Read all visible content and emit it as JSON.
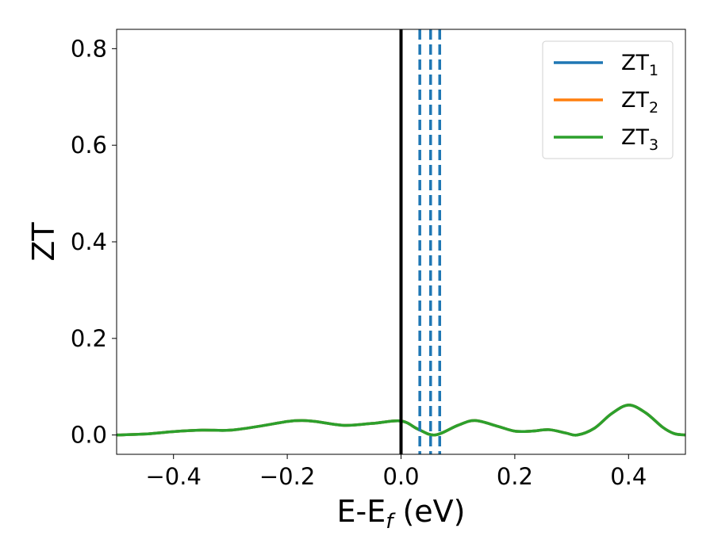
{
  "chart_data": {
    "type": "line",
    "xlabel": "E-E",
    "xlabel_sub": "f",
    "xlabel_unit": " (eV)",
    "ylabel": "ZT",
    "xlim": [
      -0.5,
      0.5
    ],
    "ylim": [
      -0.04,
      0.84
    ],
    "xticks": [
      -0.4,
      -0.2,
      0.0,
      0.2,
      0.4
    ],
    "xtick_labels": [
      "−0.4",
      "−0.2",
      "0.0",
      "0.2",
      "0.4"
    ],
    "yticks": [
      0.0,
      0.2,
      0.4,
      0.6,
      0.8
    ],
    "ytick_labels": [
      "0.0",
      "0.2",
      "0.4",
      "0.6",
      "0.8"
    ],
    "grid": false,
    "legend_position": "top-right",
    "series": [
      {
        "name": "ZT",
        "name_sub": "1",
        "color": "#1f77b4",
        "x": [
          -0.5,
          -0.45,
          -0.4,
          -0.35,
          -0.3,
          -0.25,
          -0.2,
          -0.175,
          -0.15,
          -0.1,
          -0.05,
          0.0,
          0.03,
          0.06,
          0.1,
          0.13,
          0.17,
          0.2,
          0.23,
          0.26,
          0.29,
          0.31,
          0.34,
          0.37,
          0.4,
          0.43,
          0.46,
          0.48,
          0.5
        ],
        "y": [
          0.0,
          0.002,
          0.007,
          0.01,
          0.01,
          0.018,
          0.028,
          0.03,
          0.028,
          0.02,
          0.024,
          0.029,
          0.012,
          0.0,
          0.02,
          0.03,
          0.018,
          0.008,
          0.008,
          0.011,
          0.004,
          0.0,
          0.014,
          0.044,
          0.062,
          0.046,
          0.016,
          0.003,
          0.0
        ]
      },
      {
        "name": "ZT",
        "name_sub": "2",
        "color": "#ff7f0e",
        "x": [
          -0.5,
          -0.45,
          -0.4,
          -0.35,
          -0.3,
          -0.25,
          -0.2,
          -0.175,
          -0.15,
          -0.1,
          -0.05,
          0.0,
          0.03,
          0.06,
          0.1,
          0.13,
          0.17,
          0.2,
          0.23,
          0.26,
          0.29,
          0.31,
          0.34,
          0.37,
          0.4,
          0.43,
          0.46,
          0.48,
          0.5
        ],
        "y": [
          0.0,
          0.002,
          0.007,
          0.01,
          0.01,
          0.018,
          0.028,
          0.03,
          0.028,
          0.02,
          0.024,
          0.029,
          0.012,
          0.0,
          0.02,
          0.03,
          0.018,
          0.008,
          0.008,
          0.011,
          0.004,
          0.0,
          0.014,
          0.044,
          0.062,
          0.046,
          0.016,
          0.003,
          0.0
        ]
      },
      {
        "name": "ZT",
        "name_sub": "3",
        "color": "#2ca02c",
        "x": [
          -0.5,
          -0.45,
          -0.4,
          -0.35,
          -0.3,
          -0.25,
          -0.2,
          -0.175,
          -0.15,
          -0.1,
          -0.05,
          0.0,
          0.03,
          0.06,
          0.1,
          0.13,
          0.17,
          0.2,
          0.23,
          0.26,
          0.29,
          0.31,
          0.34,
          0.37,
          0.4,
          0.43,
          0.46,
          0.48,
          0.5
        ],
        "y": [
          0.0,
          0.002,
          0.007,
          0.01,
          0.01,
          0.018,
          0.028,
          0.03,
          0.028,
          0.02,
          0.024,
          0.029,
          0.012,
          0.0,
          0.02,
          0.03,
          0.018,
          0.008,
          0.008,
          0.011,
          0.004,
          0.0,
          0.014,
          0.044,
          0.062,
          0.046,
          0.016,
          0.003,
          0.0
        ]
      }
    ],
    "vlines": [
      {
        "x": 0.0,
        "style": "solid",
        "color": "#000000"
      },
      {
        "x": 0.033,
        "style": "dashed",
        "color": "#1f77b4"
      },
      {
        "x": 0.052,
        "style": "dashed",
        "color": "#1f77b4"
      },
      {
        "x": 0.068,
        "style": "dashed",
        "color": "#1f77b4"
      }
    ]
  }
}
